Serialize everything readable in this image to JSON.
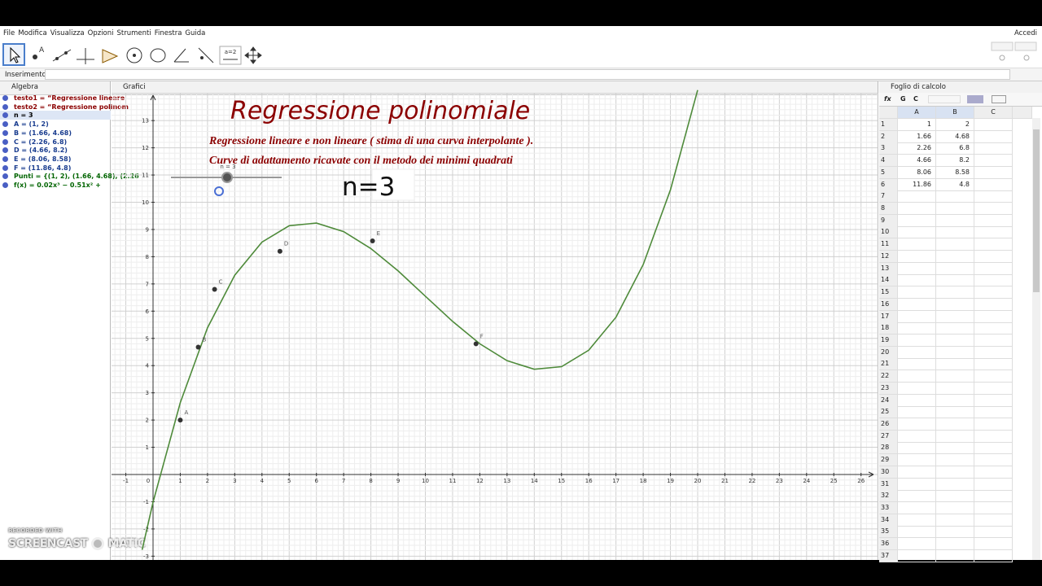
{
  "menu": {
    "items": [
      "File",
      "Modifica",
      "Visualizza",
      "Opzioni",
      "Strumenti",
      "Finestra",
      "Guida"
    ],
    "login": "Accedi"
  },
  "toolbar": {
    "slider_icon": "a=2"
  },
  "input_bar": {
    "label": "Inserimento:"
  },
  "algebra": {
    "title": "Algebra",
    "entries": [
      {
        "text": "testo1 = “Regressione  lineare",
        "color": "#8b0000"
      },
      {
        "text": "testo2 = “Regressione polinom",
        "color": "#8b0000"
      },
      {
        "text": "n = 3",
        "color": "#000000"
      },
      {
        "text": "A = (1, 2)",
        "color": "#1a3d8f"
      },
      {
        "text": "B = (1.66, 4.68)",
        "color": "#1a3d8f"
      },
      {
        "text": "C = (2.26, 6.8)",
        "color": "#1a3d8f"
      },
      {
        "text": "D = (4.66, 8.2)",
        "color": "#1a3d8f"
      },
      {
        "text": "E = (8.06, 8.58)",
        "color": "#1a3d8f"
      },
      {
        "text": "F = (11.86, 4.8)",
        "color": "#1a3d8f"
      },
      {
        "text": "Punti = {(1, 2), (1.66, 4.68), (2.26",
        "color": "#006400"
      },
      {
        "text": "f(x) = 0.02x³ − 0.51x² +",
        "color": "#006400"
      }
    ]
  },
  "graphics": {
    "title": "Grafici",
    "heading": "Regressione polinomiale",
    "subtitle_lines": [
      "Regressione  lineare  e non lineare ( stima di una curva interpolante ).",
      "Curve di adattamento  ricavate con il metodo dei minimi quadrati"
    ],
    "slider_label": "n = 3",
    "value_box": "n=3",
    "point_labels": [
      "A",
      "B",
      "C",
      "D",
      "E",
      "F"
    ],
    "x_tick_labels": [
      -1,
      0,
      1,
      2,
      3,
      4,
      5,
      6,
      7,
      8,
      9,
      10,
      11,
      12,
      13,
      14,
      15,
      16,
      17,
      18,
      19,
      20,
      21,
      22,
      23,
      24,
      25,
      26
    ],
    "y_tick_labels": [
      -3,
      -2,
      -1,
      1,
      2,
      3,
      4,
      5,
      6,
      7,
      8,
      9,
      10,
      11,
      12,
      13
    ]
  },
  "spreadsheet": {
    "title": "Foglio di calcolo",
    "toolbar": [
      "fx",
      "G",
      "C"
    ],
    "columns": [
      "A",
      "B",
      "C"
    ],
    "row_numbers": [
      1,
      2,
      3,
      4,
      5,
      6,
      7,
      8,
      9,
      10,
      11,
      12,
      13,
      14,
      15,
      16,
      17,
      18,
      19,
      20,
      21,
      22,
      23,
      24,
      25,
      26,
      27,
      28,
      29,
      30,
      31,
      32,
      33,
      34,
      35,
      36,
      37
    ],
    "rows": [
      [
        1,
        2
      ],
      [
        1.66,
        4.68
      ],
      [
        2.26,
        6.8
      ],
      [
        4.66,
        8.2
      ],
      [
        8.06,
        8.58
      ],
      [
        11.86,
        4.8
      ]
    ]
  },
  "watermark": {
    "line1": "RECORDED WITH",
    "line2": "SCREENCAST",
    "line3": "MATIC"
  }
}
